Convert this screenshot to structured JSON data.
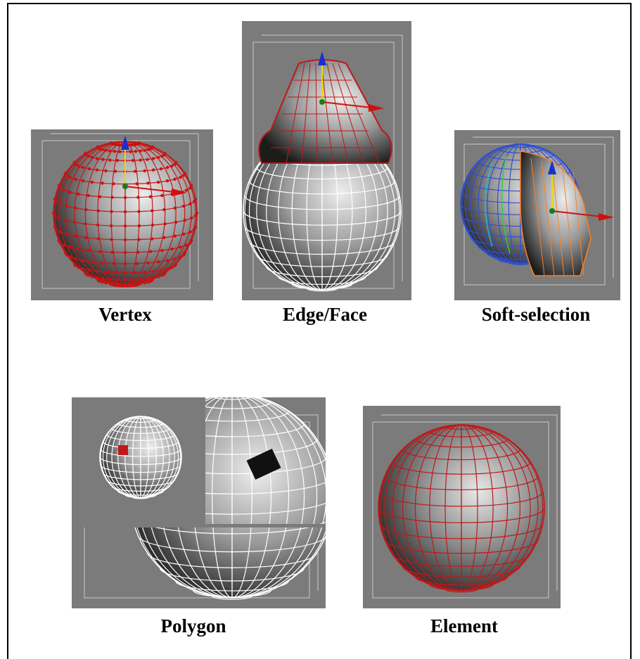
{
  "panels": [
    {
      "label": "Vertex"
    },
    {
      "label": "Edge/Face"
    },
    {
      "label": "Soft-selection"
    },
    {
      "label": "Polygon"
    },
    {
      "label": "Element"
    }
  ]
}
